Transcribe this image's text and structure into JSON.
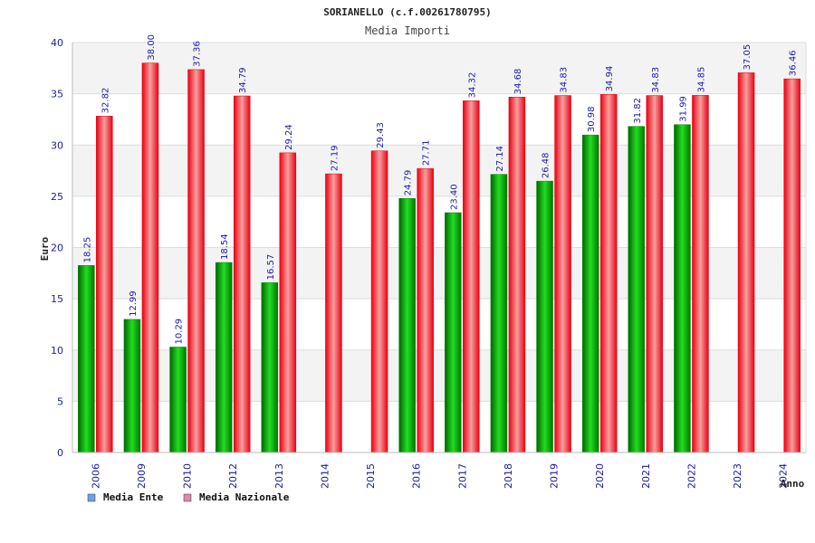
{
  "chart_data": {
    "type": "bar",
    "title": "SORIANELLO (c.f.00261780795)",
    "subtitle": "Media Importi",
    "ylabel": "Euro",
    "xlabel": "Anno",
    "ylim": [
      0,
      40
    ],
    "yticks": [
      0,
      5,
      10,
      15,
      20,
      25,
      30,
      35,
      40
    ],
    "grid": true,
    "legend_position": "bottom-left",
    "categories": [
      "2006",
      "2009",
      "2010",
      "2012",
      "2013",
      "2014",
      "2015",
      "2016",
      "2017",
      "2018",
      "2019",
      "2020",
      "2021",
      "2022",
      "2023",
      "2024"
    ],
    "series": [
      {
        "name": "Media Ente",
        "color": "#00aa00",
        "legend_color": "#6aa3e8",
        "values": [
          18.25,
          12.99,
          10.29,
          18.54,
          16.57,
          null,
          null,
          24.79,
          23.4,
          27.14,
          26.48,
          30.98,
          31.82,
          31.99,
          null,
          null
        ],
        "labels": [
          "18.25",
          "12.99",
          "10.29",
          "18.54",
          "16.57",
          null,
          null,
          "24.79",
          "23.40",
          "27.14",
          "26.48",
          "30.98",
          "31.82",
          "31.99",
          null,
          null
        ]
      },
      {
        "name": "Media Nazionale",
        "color": "#ee1122",
        "legend_color": "#dd88aa",
        "values": [
          32.82,
          38.0,
          37.36,
          34.79,
          29.24,
          27.19,
          29.43,
          27.71,
          34.32,
          34.68,
          34.83,
          34.94,
          34.83,
          34.85,
          37.05,
          36.46
        ],
        "labels": [
          "32.82",
          "38.00",
          "37.36",
          "34.79",
          "29.24",
          "27.19",
          "29.43",
          "27.71",
          "34.32",
          "34.68",
          "34.83",
          "34.94",
          "34.83",
          "34.85",
          "37.05",
          "36.46"
        ]
      }
    ]
  }
}
